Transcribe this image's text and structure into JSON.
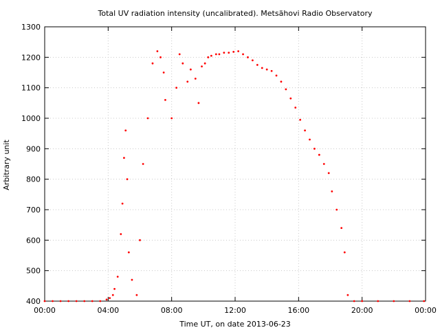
{
  "chart_data": {
    "type": "scatter",
    "title": "Total UV radiation intensity (uncalibrated). Metsähovi Radio Observatory",
    "xlabel": "Time UT, on date 2013-06-23",
    "ylabel": "Arbitrary unit",
    "xlim": [
      "00:00",
      "24:00"
    ],
    "ylim": [
      400,
      1300
    ],
    "x_ticks": [
      "00:00",
      "04:00",
      "08:00",
      "12:00",
      "16:00",
      "20:00",
      "00:00"
    ],
    "y_ticks": [
      400,
      500,
      600,
      700,
      800,
      900,
      1000,
      1100,
      1200,
      1300
    ],
    "grid": true,
    "legend": "none",
    "marker_color": "#ff0000",
    "series": [
      {
        "points_note_x_unit": "hours UT",
        "x": [
          0.0,
          0.5,
          1.0,
          1.5,
          2.0,
          2.5,
          3.0,
          3.5,
          3.9,
          4.1,
          4.3,
          4.4,
          4.6,
          4.8,
          4.9,
          5.0,
          5.1,
          5.2,
          5.3,
          5.5,
          5.8,
          6.0,
          6.2,
          6.5,
          6.8,
          7.1,
          7.3,
          7.5,
          7.6,
          8.0,
          8.3,
          8.5,
          8.7,
          9.0,
          9.2,
          9.5,
          9.7,
          9.9,
          10.1,
          10.3,
          10.5,
          10.8,
          11.0,
          11.3,
          11.6,
          11.9,
          12.2,
          12.5,
          12.8,
          13.1,
          13.4,
          13.7,
          14.0,
          14.3,
          14.6,
          14.9,
          15.2,
          15.5,
          15.8,
          16.1,
          16.4,
          16.7,
          17.0,
          17.3,
          17.6,
          17.9,
          18.1,
          18.4,
          18.7,
          18.9,
          19.1,
          19.5,
          20.0,
          21.0,
          22.0,
          23.0,
          23.9
        ],
        "y": [
          400,
          400,
          400,
          400,
          400,
          400,
          400,
          400,
          405,
          410,
          420,
          440,
          480,
          620,
          720,
          870,
          960,
          800,
          560,
          470,
          420,
          600,
          850,
          1000,
          1180,
          1220,
          1200,
          1150,
          1060,
          1000,
          1100,
          1210,
          1180,
          1120,
          1160,
          1130,
          1050,
          1170,
          1180,
          1200,
          1205,
          1210,
          1210,
          1215,
          1215,
          1218,
          1220,
          1210,
          1200,
          1190,
          1175,
          1165,
          1160,
          1155,
          1140,
          1120,
          1095,
          1065,
          1035,
          995,
          960,
          930,
          900,
          880,
          850,
          820,
          760,
          700,
          640,
          560,
          420,
          400,
          400,
          400,
          400,
          400,
          400
        ]
      }
    ]
  }
}
